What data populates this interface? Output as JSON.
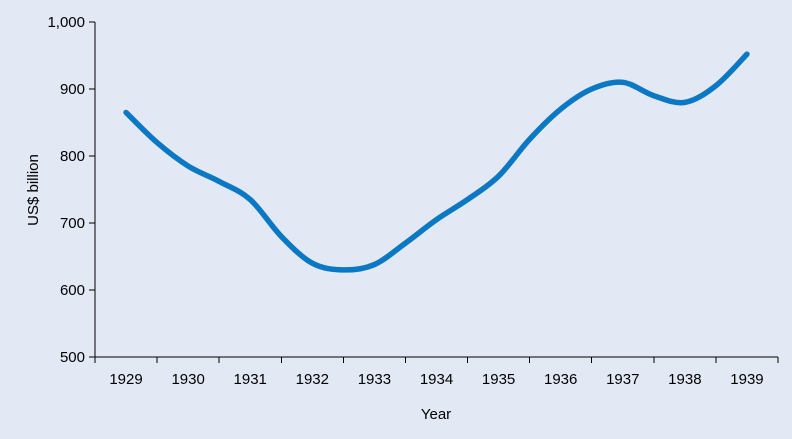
{
  "chart_data": {
    "type": "line",
    "title": "",
    "xlabel": "Year",
    "ylabel": "US$ billion",
    "x": [
      "1929",
      "1930",
      "1931",
      "1932",
      "1933",
      "1934",
      "1935",
      "1936",
      "1937",
      "1938",
      "1939"
    ],
    "points": [
      [
        1929.0,
        865
      ],
      [
        1929.5,
        820
      ],
      [
        1930.0,
        785
      ],
      [
        1930.5,
        762
      ],
      [
        1931.0,
        735
      ],
      [
        1931.5,
        680
      ],
      [
        1932.0,
        640
      ],
      [
        1932.5,
        630
      ],
      [
        1933.0,
        638
      ],
      [
        1933.5,
        670
      ],
      [
        1934.0,
        705
      ],
      [
        1934.5,
        735
      ],
      [
        1935.0,
        770
      ],
      [
        1935.5,
        825
      ],
      [
        1936.0,
        870
      ],
      [
        1936.5,
        900
      ],
      [
        1937.0,
        910
      ],
      [
        1937.5,
        890
      ],
      [
        1938.0,
        880
      ],
      [
        1938.5,
        905
      ],
      [
        1939.0,
        952
      ]
    ],
    "ylim": [
      500,
      1000
    ],
    "yticks": [
      "500",
      "600",
      "700",
      "800",
      "900",
      "1,000"
    ],
    "grid": false,
    "colors": {
      "line": "#0a78c2",
      "background": "#e3e8f5",
      "axis": "#000000"
    }
  }
}
